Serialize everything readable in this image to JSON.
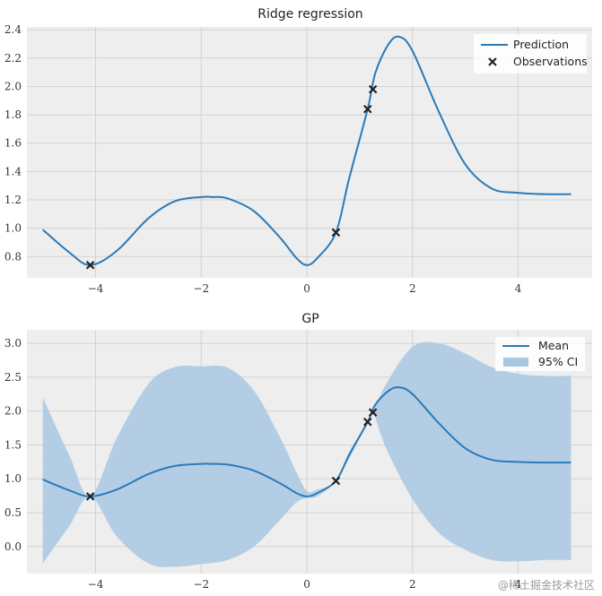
{
  "chart_data": [
    {
      "type": "line",
      "title": "Ridge regression",
      "xlim": [
        -5.3,
        5.4
      ],
      "ylim": [
        0.65,
        2.42
      ],
      "xticks": [
        -4,
        -2,
        0,
        2,
        4
      ],
      "yticks": [
        0.8,
        1.0,
        1.2,
        1.4,
        1.6,
        1.8,
        2.0,
        2.2,
        2.4
      ],
      "grid": true,
      "legend_position": "top-right",
      "series": [
        {
          "name": "Prediction",
          "type": "line",
          "color": "#2a7ab8",
          "x": [
            -5,
            -4.5,
            -4.1,
            -3.6,
            -3,
            -2.5,
            -2,
            -1.8,
            -1.5,
            -1,
            -0.5,
            -0.2,
            0,
            0.2,
            0.55,
            0.8,
            1.15,
            1.3,
            1.55,
            1.75,
            2,
            2.5,
            3,
            3.5,
            4,
            4.5,
            5
          ],
          "y": [
            0.99,
            0.83,
            0.74,
            0.84,
            1.07,
            1.19,
            1.22,
            1.22,
            1.21,
            1.12,
            0.93,
            0.79,
            0.74,
            0.79,
            0.97,
            1.35,
            1.84,
            2.1,
            2.3,
            2.35,
            2.25,
            1.82,
            1.45,
            1.28,
            1.25,
            1.24,
            1.24
          ]
        },
        {
          "name": "Observations",
          "type": "scatter",
          "marker": "x",
          "color": "#222222",
          "x": [
            -4.1,
            0.55,
            1.15,
            1.25
          ],
          "y": [
            0.74,
            0.97,
            1.84,
            1.98
          ]
        }
      ]
    },
    {
      "type": "line",
      "title": "GP",
      "xlim": [
        -5.3,
        5.4
      ],
      "ylim": [
        -0.4,
        3.2
      ],
      "xticks": [
        -4,
        -2,
        0,
        2,
        4
      ],
      "yticks": [
        0.0,
        0.5,
        1.0,
        1.5,
        2.0,
        2.5,
        3.0
      ],
      "grid": true,
      "legend_position": "top-right",
      "series": [
        {
          "name": "Mean",
          "type": "line",
          "color": "#2a7ab8",
          "x": [
            -5,
            -4.5,
            -4.1,
            -3.6,
            -3,
            -2.5,
            -2,
            -1.8,
            -1.5,
            -1,
            -0.5,
            -0.2,
            0,
            0.2,
            0.55,
            0.8,
            1.15,
            1.3,
            1.55,
            1.75,
            2,
            2.5,
            3,
            3.5,
            4,
            4.5,
            5
          ],
          "y": [
            0.99,
            0.83,
            0.74,
            0.84,
            1.07,
            1.19,
            1.22,
            1.22,
            1.21,
            1.12,
            0.93,
            0.79,
            0.74,
            0.79,
            0.97,
            1.35,
            1.84,
            2.1,
            2.3,
            2.35,
            2.25,
            1.82,
            1.45,
            1.28,
            1.25,
            1.24,
            1.24
          ]
        },
        {
          "name": "95% CI",
          "type": "band",
          "color": "#a8c8e2",
          "x": [
            -5,
            -4.5,
            -4.1,
            -3.6,
            -3,
            -2.5,
            -2,
            -1.5,
            -1,
            -0.5,
            -0.2,
            0,
            0.2,
            0.55,
            0.8,
            1.15,
            1.25,
            1.5,
            2,
            2.5,
            3,
            3.5,
            4,
            4.5,
            5
          ],
          "lower": [
            -0.25,
            0.3,
            0.74,
            0.15,
            -0.25,
            -0.3,
            -0.26,
            -0.2,
            0.0,
            0.4,
            0.65,
            0.72,
            0.74,
            0.97,
            1.3,
            1.84,
            1.98,
            1.45,
            0.7,
            0.2,
            -0.05,
            -0.2,
            -0.22,
            -0.2,
            -0.2
          ],
          "upper": [
            2.2,
            1.35,
            0.74,
            1.6,
            2.4,
            2.65,
            2.66,
            2.64,
            2.3,
            1.6,
            1.1,
            0.82,
            0.84,
            0.97,
            1.4,
            1.84,
            1.98,
            2.4,
            2.95,
            3.0,
            2.85,
            2.65,
            2.55,
            2.52,
            2.52
          ]
        },
        {
          "name": "Observations",
          "type": "scatter",
          "marker": "x",
          "color": "#222222",
          "x": [
            -4.1,
            0.55,
            1.15,
            1.25
          ],
          "y": [
            0.74,
            0.97,
            1.84,
            1.98
          ]
        }
      ]
    }
  ],
  "watermark": "@稀土掘金技术社区"
}
